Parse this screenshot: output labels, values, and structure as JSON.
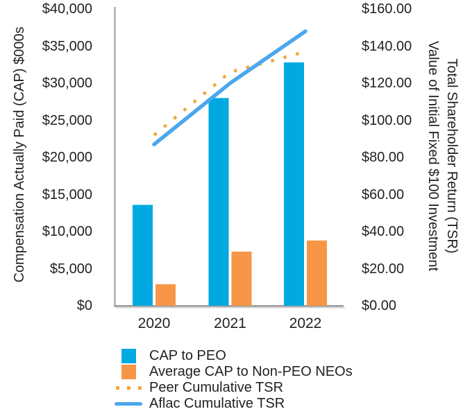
{
  "chart_data": {
    "type": "bar",
    "subtype": "combo-bar-line-dual-axis",
    "title": "",
    "categories": [
      "2020",
      "2021",
      "2022"
    ],
    "series": [
      {
        "name": "CAP to PEO",
        "type": "bar",
        "axis": "left",
        "values": [
          13600,
          28000,
          32800
        ],
        "color": "#00A9E1"
      },
      {
        "name": "Average CAP to Non-PEO NEOs",
        "type": "bar",
        "axis": "left",
        "values": [
          2900,
          7300,
          8800
        ],
        "color": "#F79646"
      },
      {
        "name": "Peer Cumulative TSR",
        "type": "dotted-line",
        "axis": "right",
        "values": [
          92,
          126,
          137
        ],
        "color": "#EFA73E"
      },
      {
        "name": "Aflac Cumulative TSR",
        "type": "line",
        "axis": "right",
        "values": [
          87,
          120,
          148
        ],
        "color": "#4BA7EC"
      }
    ],
    "left_axis": {
      "label": "Compensation Actually Paid (CAP) $000s",
      "min": 0,
      "max": 40000,
      "ticks": [
        "$0",
        "$5,000",
        "$10,000",
        "$15,000",
        "$20,000",
        "$25,000",
        "$30,000",
        "$35,000",
        "$40,000"
      ]
    },
    "right_axis": {
      "label_line1": "Total Shareholder Return (TSR)",
      "label_line2": "Value of Initial Fixed $100 Investment",
      "min": 0,
      "max": 160,
      "ticks": [
        "$0.00",
        "$20.00",
        "$40.00",
        "$60.00",
        "$80.00",
        "$100.00",
        "$120.00",
        "$140.00",
        "$160.00"
      ]
    },
    "legend": [
      {
        "label": "CAP to PEO",
        "swatch": "blue-square"
      },
      {
        "label": "Average CAP to Non-PEO NEOs",
        "swatch": "orange-square"
      },
      {
        "label": "Peer Cumulative TSR",
        "swatch": "gold-dots"
      },
      {
        "label": "Aflac Cumulative TSR",
        "swatch": "blue-line"
      }
    ],
    "legend_position": "bottom-left",
    "grid": "off",
    "colors": {
      "cap_to_peo_bar": "#00A9E1",
      "avg_cap_non_peo_bar": "#F79646",
      "peer_tsr_dots": "#EFA73E",
      "aflac_tsr_line": "#4BA7EC",
      "axis_line": "#9C9C9C",
      "axis_line_shadow": "#D2D2D2",
      "text": "#231F20",
      "background": "#FFFFFF"
    }
  }
}
